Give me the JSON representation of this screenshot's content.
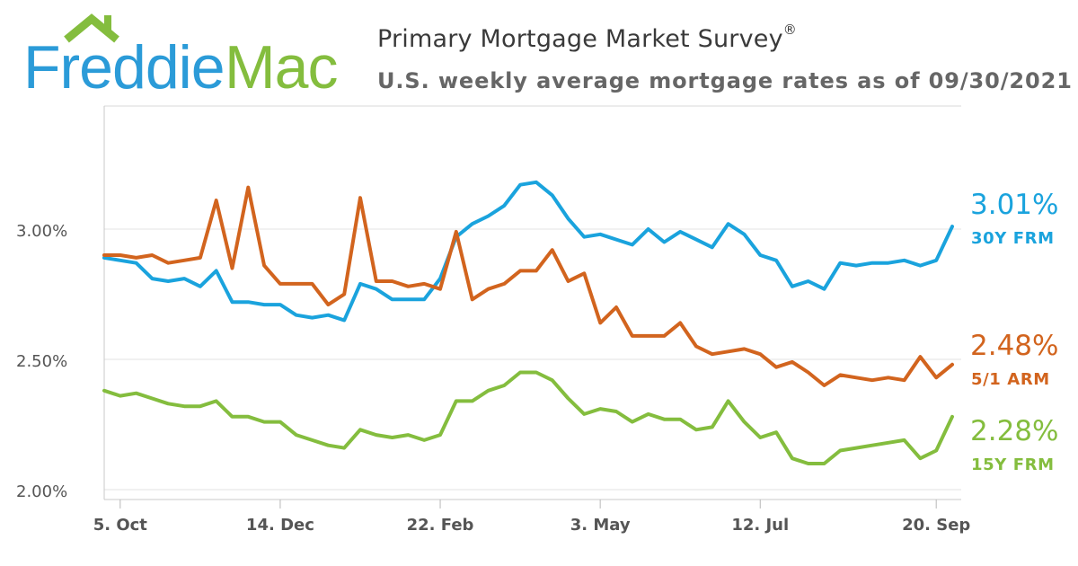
{
  "header": {
    "logo_text_1": "Freddie",
    "logo_text_2": "Mac",
    "title": "Primary Mortgage Market Survey",
    "title_mark": "®",
    "subtitle": "U.S. weekly average mortgage rates as of 09/30/2021"
  },
  "colors": {
    "frm30": "#1aa3dd",
    "arm51": "#d2641e",
    "frm15": "#84bd3e",
    "logo_blue": "#2b9bd8",
    "logo_green": "#84bd3e"
  },
  "chart_data": {
    "type": "line",
    "title": "Primary Mortgage Market Survey®",
    "subtitle": "U.S. weekly average mortgage rates as of 09/30/2021",
    "xlabel": "",
    "ylabel": "",
    "ylim": [
      1.95,
      3.5
    ],
    "yticks": [
      2.0,
      2.5,
      3.0
    ],
    "ytick_labels": [
      "2.00%",
      "2.50%",
      "3.00%"
    ],
    "xtick_positions": [
      1,
      11,
      21,
      31,
      41,
      52
    ],
    "xtick_labels": [
      "5. Oct",
      "14. Dec",
      "22. Feb",
      "3. May",
      "12. Jul",
      "20. Sep"
    ],
    "x": [
      0,
      1,
      2,
      3,
      4,
      5,
      6,
      7,
      8,
      9,
      10,
      11,
      12,
      13,
      14,
      15,
      16,
      17,
      18,
      19,
      20,
      21,
      22,
      23,
      24,
      25,
      26,
      27,
      28,
      29,
      30,
      31,
      32,
      33,
      34,
      35,
      36,
      37,
      38,
      39,
      40,
      41,
      42,
      43,
      44,
      45,
      46,
      47,
      48,
      49,
      50,
      51,
      52,
      53
    ],
    "series": [
      {
        "name": "30Y FRM",
        "key": "frm30",
        "last_label": "3.01%",
        "values": [
          2.89,
          2.88,
          2.87,
          2.81,
          2.8,
          2.81,
          2.78,
          2.84,
          2.72,
          2.72,
          2.71,
          2.71,
          2.67,
          2.66,
          2.67,
          2.65,
          2.79,
          2.77,
          2.73,
          2.73,
          2.73,
          2.81,
          2.97,
          3.02,
          3.05,
          3.09,
          3.17,
          3.18,
          3.13,
          3.04,
          2.97,
          2.98,
          2.96,
          2.94,
          3.0,
          2.95,
          2.99,
          2.96,
          2.93,
          3.02,
          2.98,
          2.9,
          2.88,
          2.78,
          2.8,
          2.77,
          2.87,
          2.86,
          2.87,
          2.87,
          2.88,
          2.86,
          2.88,
          3.01
        ]
      },
      {
        "name": "5/1 ARM",
        "key": "arm51",
        "last_label": "2.48%",
        "values": [
          2.9,
          2.9,
          2.89,
          2.9,
          2.87,
          2.88,
          2.89,
          3.11,
          2.85,
          3.16,
          2.86,
          2.79,
          2.79,
          2.79,
          2.71,
          2.75,
          3.12,
          2.8,
          2.8,
          2.78,
          2.79,
          2.77,
          2.99,
          2.73,
          2.77,
          2.79,
          2.84,
          2.84,
          2.92,
          2.8,
          2.83,
          2.64,
          2.7,
          2.59,
          2.59,
          2.59,
          2.64,
          2.55,
          2.52,
          2.53,
          2.54,
          2.52,
          2.47,
          2.49,
          2.45,
          2.4,
          2.44,
          2.43,
          2.42,
          2.43,
          2.42,
          2.51,
          2.43,
          2.48
        ]
      },
      {
        "name": "15Y FRM",
        "key": "frm15",
        "last_label": "2.28%",
        "values": [
          2.38,
          2.36,
          2.37,
          2.35,
          2.33,
          2.32,
          2.32,
          2.34,
          2.28,
          2.28,
          2.26,
          2.26,
          2.21,
          2.19,
          2.17,
          2.16,
          2.23,
          2.21,
          2.2,
          2.21,
          2.19,
          2.21,
          2.34,
          2.34,
          2.38,
          2.4,
          2.45,
          2.45,
          2.42,
          2.35,
          2.29,
          2.31,
          2.3,
          2.26,
          2.29,
          2.27,
          2.27,
          2.23,
          2.24,
          2.34,
          2.26,
          2.2,
          2.22,
          2.12,
          2.1,
          2.1,
          2.15,
          2.16,
          2.17,
          2.18,
          2.19,
          2.12,
          2.15,
          2.28
        ]
      }
    ]
  }
}
